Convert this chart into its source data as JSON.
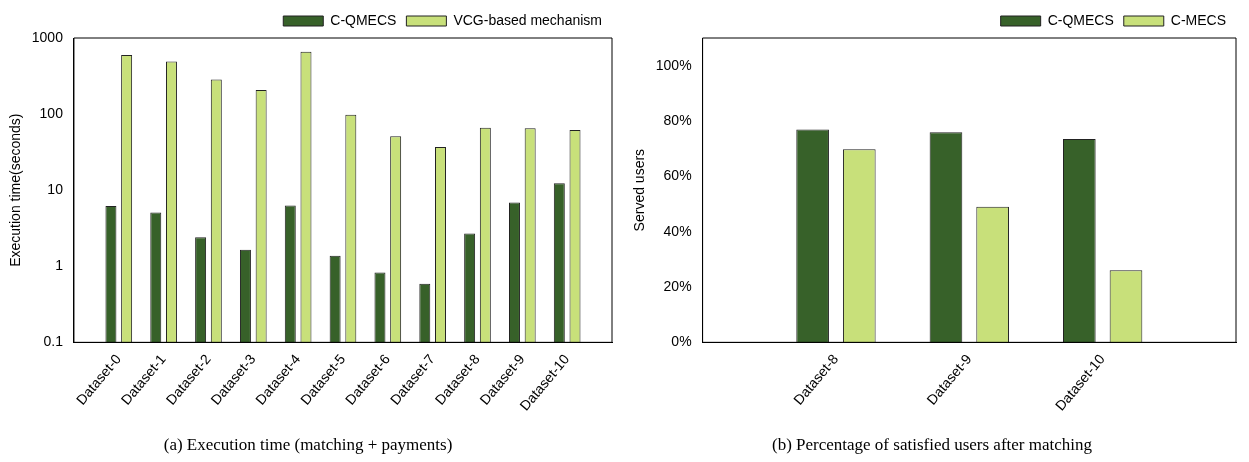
{
  "chart_data": [
    {
      "type": "bar",
      "title": "(a) Execution time (matching + payments)",
      "ylabel": "Execution time(seconds)",
      "log": true,
      "legend": "top right",
      "grid": false,
      "categories": [
        "Dataset-0",
        "Dataset-1",
        "Dataset-2",
        "Dataset-3",
        "Dataset-4",
        "Dataset-5",
        "Dataset-6",
        "Dataset-7",
        "Dataset-8",
        "Dataset-9",
        "Dataset-10"
      ],
      "ylim": [
        0.1,
        1000
      ],
      "yticks": [
        0.1,
        1,
        10,
        100,
        1000
      ],
      "series": [
        {
          "name": "C-QMECS",
          "color": "#376129",
          "values": [
            6.2,
            5.1,
            2.4,
            1.65,
            6.3,
            1.37,
            0.83,
            0.59,
            2.7,
            6.9,
            12.3
          ]
        },
        {
          "name": "VCG-based mechanism",
          "color": "#c8e07a",
          "values": [
            600,
            490,
            285,
            207,
            660,
            98,
            51,
            37,
            66,
            65,
            62
          ]
        }
      ]
    },
    {
      "type": "bar",
      "title": "(b) Percentage of satisfied users after matching",
      "ylabel": "Served users",
      "legend": "top right",
      "grid": false,
      "categories": [
        "Dataset-8",
        "Dataset-9",
        "Dataset-10"
      ],
      "ylim": [
        0,
        110
      ],
      "yticks": [
        {
          "value": 0,
          "label": "0%"
        },
        {
          "value": 20,
          "label": "20%"
        },
        {
          "value": 40,
          "label": "40%"
        },
        {
          "value": 60,
          "label": "60%"
        },
        {
          "value": 80,
          "label": "80%"
        },
        {
          "value": 100,
          "label": "100%"
        }
      ],
      "series": [
        {
          "name": "C-QMECS",
          "color": "#376129",
          "values": [
            76.9,
            75.9,
            73.5
          ]
        },
        {
          "name": "C-MECS",
          "color": "#c8e07a",
          "values": [
            69.8,
            49,
            26.1
          ]
        }
      ]
    }
  ]
}
